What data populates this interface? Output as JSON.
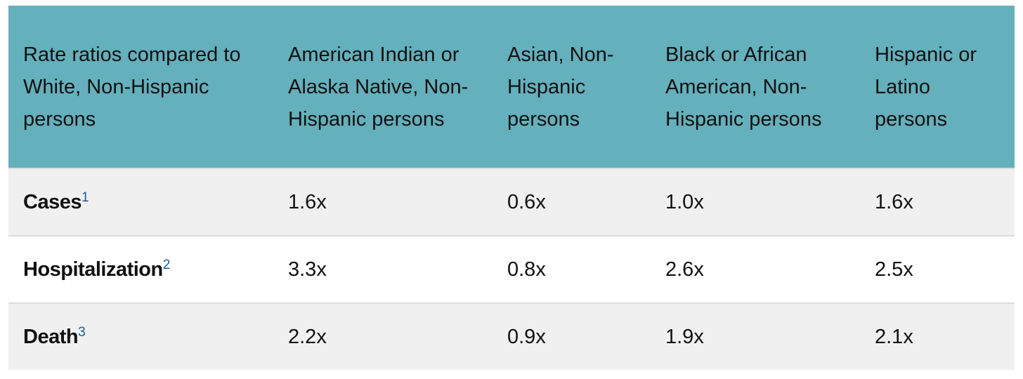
{
  "table": {
    "header": [
      "Rate ratios compared to White, Non-Hispanic persons",
      "American Indian or Alaska Native, Non-Hispanic persons",
      "Asian, Non-Hispanic persons",
      "Black or African American, Non-Hispanic persons",
      "Hispanic or Latino persons"
    ],
    "rows": [
      {
        "label": "Cases",
        "note": "1",
        "cells": [
          "1.6x",
          "0.6x",
          "1.0x",
          "1.6x"
        ]
      },
      {
        "label": "Hospitalization",
        "note": "2",
        "cells": [
          "3.3x",
          "0.8x",
          "2.6x",
          "2.5x"
        ]
      },
      {
        "label": "Death",
        "note": "3",
        "cells": [
          "2.2x",
          "0.9x",
          "1.9x",
          "2.1x"
        ]
      }
    ]
  }
}
